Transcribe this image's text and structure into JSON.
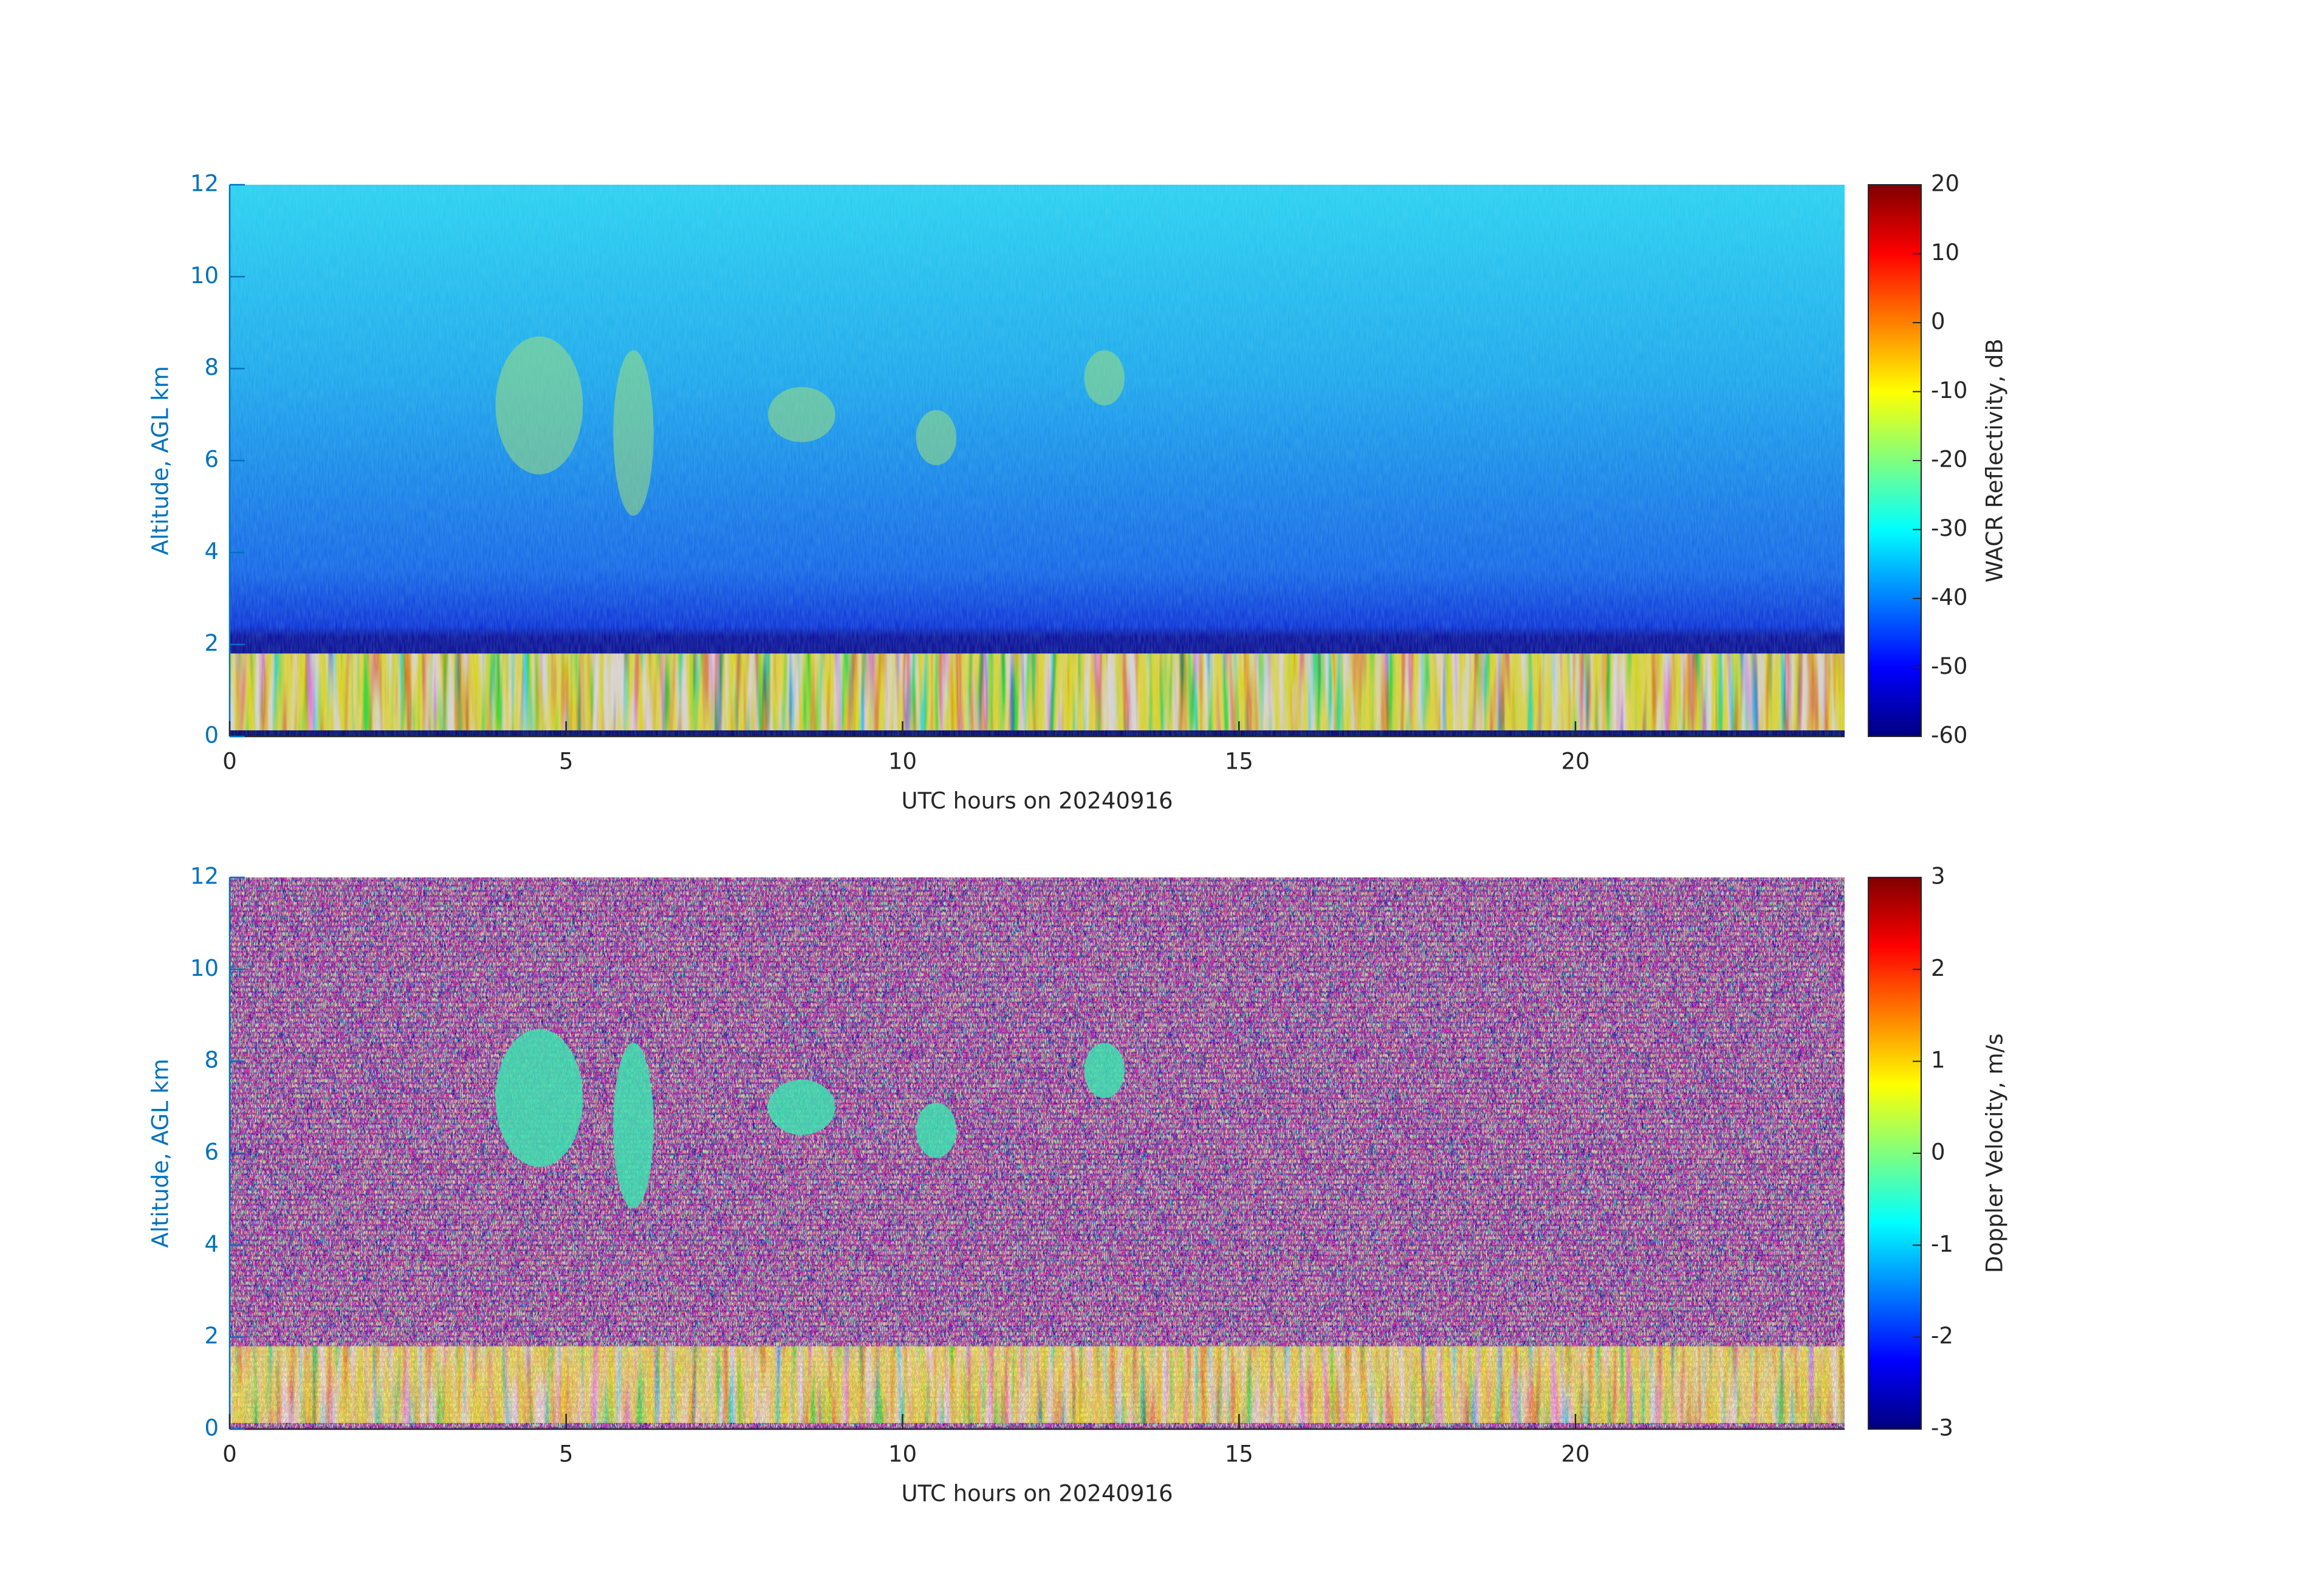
{
  "chart_data": [
    {
      "type": "heatmap",
      "xlabel": "UTC hours on 20240916",
      "ylabel": "Altitude, AGL km",
      "xlim": [
        0,
        24
      ],
      "xticks": [
        0,
        5,
        10,
        15,
        20
      ],
      "ylim": [
        0,
        12
      ],
      "yticks": [
        0,
        2,
        4,
        6,
        8,
        10,
        12
      ],
      "colorbar": {
        "label": "WACR Reflectivity, dB",
        "lim": [
          -60,
          20
        ],
        "ticks": [
          -60,
          -50,
          -40,
          -30,
          -20,
          -10,
          0,
          10,
          20
        ],
        "colormap": "jet"
      }
    },
    {
      "type": "heatmap",
      "xlabel": "UTC hours on 20240916",
      "ylabel": "Altitude, AGL km",
      "xlim": [
        0,
        24
      ],
      "xticks": [
        0,
        5,
        10,
        15,
        20
      ],
      "ylim": [
        0,
        12
      ],
      "yticks": [
        0,
        2,
        4,
        6,
        8,
        10,
        12
      ],
      "colorbar": {
        "label": "Doppler Velocity, m/s",
        "lim": [
          -3,
          3
        ],
        "ticks": [
          -3,
          -2,
          -1,
          0,
          1,
          2,
          3
        ],
        "colormap": "jet"
      }
    }
  ]
}
